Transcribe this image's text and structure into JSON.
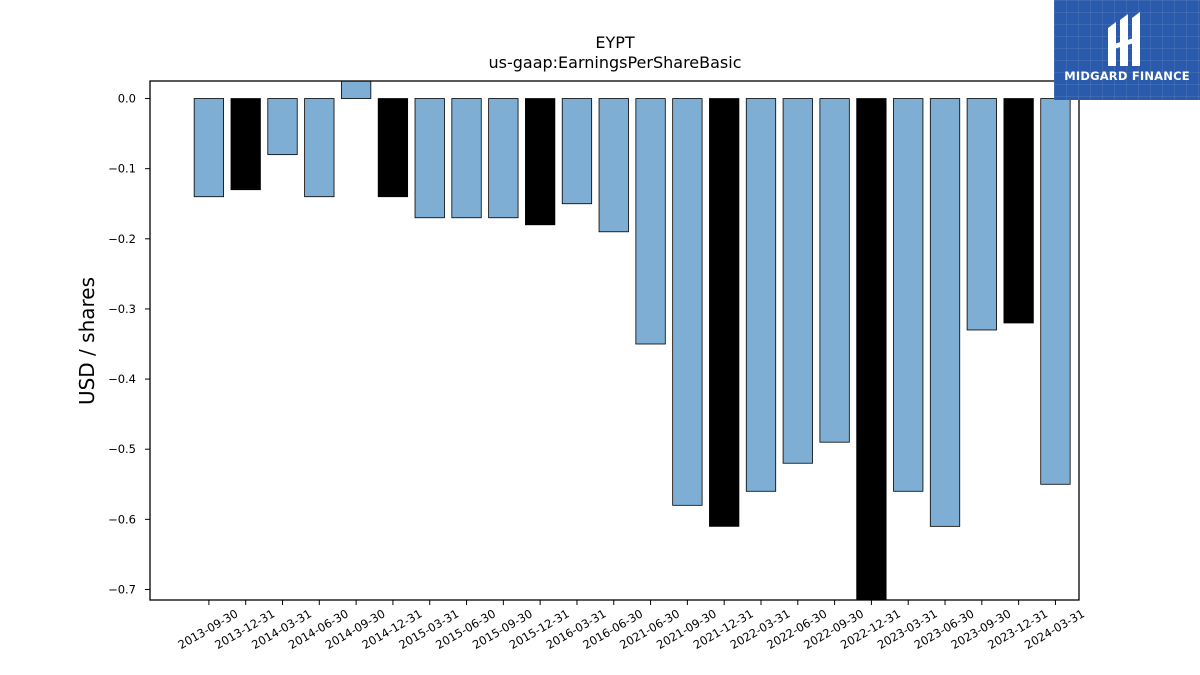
{
  "brand": {
    "name": "MIDGARD FINANCE",
    "logo_icon": "midgard-monogram-icon",
    "bg_color": "#2a5aac"
  },
  "chart_data": {
    "type": "bar",
    "title": "EYPT",
    "subtitle": "us-gaap:EarningsPerShareBasic",
    "xlabel": "",
    "ylabel": "USD / shares",
    "ylim": [
      -0.715,
      0.025
    ],
    "yticks": [
      0.0,
      -0.1,
      -0.2,
      -0.3,
      -0.4,
      -0.5,
      -0.6,
      -0.7
    ],
    "ytick_labels": [
      "0.0",
      "−0.1",
      "−0.2",
      "−0.3",
      "−0.4",
      "−0.5",
      "−0.6",
      "−0.7"
    ],
    "grid": false,
    "colors": {
      "quarter": "#7eaed3",
      "year_end": "#000000",
      "edge": "#000000"
    },
    "categories": [
      "2013-09-30",
      "2013-12-31",
      "2014-03-31",
      "2014-06-30",
      "2014-09-30",
      "2014-12-31",
      "2015-03-31",
      "2015-06-30",
      "2015-09-30",
      "2015-12-31",
      "2016-03-31",
      "2016-06-30",
      "2021-06-30",
      "2021-09-30",
      "2021-12-31",
      "2022-03-31",
      "2022-06-30",
      "2022-09-30",
      "2022-12-31",
      "2023-03-31",
      "2023-06-30",
      "2023-09-30",
      "2023-12-31",
      "2024-03-31"
    ],
    "values": [
      -0.14,
      -0.13,
      -0.08,
      -0.14,
      0.03,
      -0.14,
      -0.17,
      -0.17,
      -0.17,
      -0.18,
      -0.15,
      -0.19,
      -0.35,
      -0.58,
      -0.61,
      -0.56,
      -0.52,
      -0.49,
      -0.72,
      -0.56,
      -0.61,
      -0.33,
      -0.32,
      -0.55
    ],
    "year_end": [
      false,
      true,
      false,
      false,
      false,
      true,
      false,
      false,
      false,
      true,
      false,
      false,
      false,
      false,
      true,
      false,
      false,
      false,
      true,
      false,
      false,
      false,
      true,
      false
    ]
  }
}
